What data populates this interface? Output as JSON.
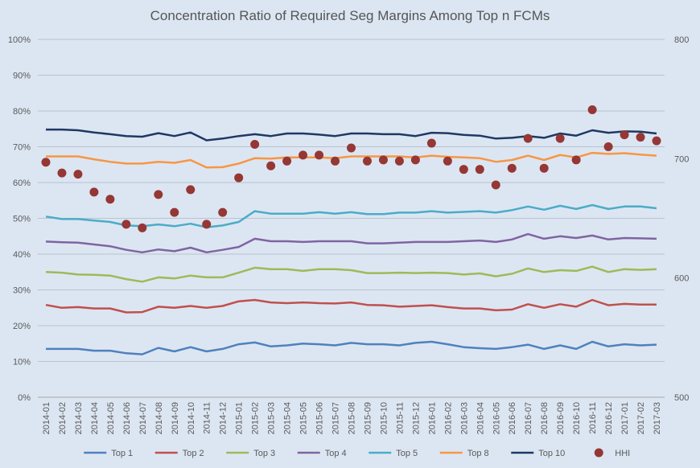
{
  "chart_data": {
    "type": "line",
    "title": "Concentration Ratio of Required Seg Margins Among Top n FCMs",
    "categories": [
      "2014-01",
      "2014-02",
      "2014-03",
      "2014-04",
      "2014-05",
      "2014-06",
      "2014-07",
      "2014-08",
      "2014-09",
      "2014-10",
      "2014-11",
      "2014-12",
      "2015-01",
      "2015-02",
      "2015-03",
      "2015-04",
      "2015-05",
      "2015-06",
      "2015-07",
      "2015-08",
      "2015-09",
      "2015-10",
      "2015-11",
      "2015-12",
      "2016-01",
      "2016-02",
      "2016-03",
      "2016-04",
      "2016-05",
      "2016-06",
      "2016-07",
      "2016-08",
      "2016-09",
      "2016-10",
      "2016-11",
      "2016-12",
      "2017-01",
      "2017-02",
      "2017-03"
    ],
    "y_left": {
      "range": [
        0,
        100
      ],
      "ticks": [
        "0%",
        "10%",
        "20%",
        "30%",
        "40%",
        "50%",
        "60%",
        "70%",
        "80%",
        "90%",
        "100%"
      ]
    },
    "y_right": {
      "range": [
        500,
        800
      ],
      "ticks": [
        "500",
        "600",
        "700",
        "800"
      ]
    },
    "grid": true,
    "legend_position": "bottom",
    "series": [
      {
        "name": "Top 1",
        "color": "#4f81bd",
        "axis": "left",
        "type": "line",
        "values": [
          13.5,
          13.5,
          13.5,
          13,
          13,
          12.3,
          12,
          13.8,
          12.8,
          14,
          12.8,
          13.5,
          14.8,
          15.3,
          14.2,
          14.5,
          15,
          14.8,
          14.5,
          15.2,
          14.8,
          14.8,
          14.5,
          15.2,
          15.5,
          14.8,
          14,
          13.7,
          13.5,
          14,
          14.7,
          13.5,
          14.5,
          13.5,
          15.5,
          14.2,
          14.8,
          14.5,
          14.7
        ]
      },
      {
        "name": "Top 2",
        "color": "#c0504d",
        "axis": "left",
        "type": "line",
        "values": [
          25.8,
          25,
          25.2,
          24.8,
          24.8,
          23.7,
          23.8,
          25.3,
          25,
          25.5,
          25,
          25.5,
          26.8,
          27.2,
          26.5,
          26.3,
          26.5,
          26.3,
          26.2,
          26.5,
          25.8,
          25.7,
          25.3,
          25.5,
          25.7,
          25.2,
          24.8,
          24.8,
          24.3,
          24.5,
          26,
          25,
          26,
          25.3,
          27.2,
          25.7,
          26.1,
          25.9,
          25.9
        ]
      },
      {
        "name": "Top 3",
        "color": "#9bbb59",
        "axis": "left",
        "type": "line",
        "values": [
          35,
          34.8,
          34.3,
          34.2,
          34,
          33,
          32.3,
          33.5,
          33.2,
          34,
          33.5,
          33.5,
          34.8,
          36.2,
          35.8,
          35.8,
          35.3,
          35.8,
          35.8,
          35.5,
          34.7,
          34.7,
          34.8,
          34.7,
          34.8,
          34.7,
          34.3,
          34.6,
          33.8,
          34.5,
          36,
          35,
          35.5,
          35.3,
          36.5,
          35,
          35.8,
          35.6,
          35.8
        ]
      },
      {
        "name": "Top 4",
        "color": "#8064a2",
        "axis": "left",
        "type": "line",
        "values": [
          43.5,
          43.3,
          43.2,
          42.7,
          42.2,
          41.2,
          40.5,
          41.3,
          40.8,
          41.8,
          40.5,
          41.2,
          42,
          44.3,
          43.6,
          43.6,
          43.4,
          43.6,
          43.6,
          43.6,
          43,
          43,
          43.2,
          43.4,
          43.4,
          43.4,
          43.6,
          43.8,
          43.4,
          44.1,
          45.6,
          44.3,
          45,
          44.5,
          45.2,
          44.1,
          44.5,
          44.4,
          44.3
        ]
      },
      {
        "name": "Top 5",
        "color": "#4bacc6",
        "axis": "left",
        "type": "line",
        "values": [
          50.5,
          49.8,
          49.8,
          49.4,
          49,
          48,
          47.8,
          48.3,
          47.8,
          48.5,
          47.5,
          48,
          49,
          52,
          51.3,
          51.3,
          51.3,
          51.7,
          51.3,
          51.7,
          51.2,
          51.2,
          51.6,
          51.6,
          52,
          51.6,
          51.8,
          52,
          51.6,
          52.3,
          53.3,
          52.4,
          53.5,
          52.6,
          53.7,
          52.6,
          53.3,
          53.3,
          52.8
        ]
      },
      {
        "name": "Top 8",
        "color": "#f79646",
        "axis": "left",
        "type": "line",
        "values": [
          67.3,
          67.3,
          67.3,
          66.5,
          65.8,
          65.3,
          65.3,
          65.8,
          65.5,
          66.3,
          64.2,
          64.3,
          65.3,
          66.8,
          66.7,
          67,
          67,
          67,
          66.8,
          67.3,
          67.3,
          67.3,
          67.3,
          67,
          67.5,
          67.2,
          67,
          66.8,
          65.8,
          66.3,
          67.5,
          66.3,
          67.7,
          67,
          68.3,
          68,
          68.2,
          67.8,
          67.5
        ]
      },
      {
        "name": "Top 10",
        "color": "#1f3864",
        "axis": "left",
        "type": "line",
        "values": [
          74.8,
          74.8,
          74.6,
          74,
          73.5,
          73,
          72.8,
          73.8,
          73,
          74,
          71.8,
          72.3,
          73,
          73.5,
          73,
          73.7,
          73.7,
          73.4,
          73,
          73.7,
          73.7,
          73.5,
          73.5,
          73,
          73.9,
          73.8,
          73.3,
          73.1,
          72.3,
          72.5,
          73,
          72.5,
          73.7,
          73.1,
          74.6,
          73.9,
          74.3,
          74.2,
          73.7
        ]
      },
      {
        "name": "HHI",
        "color": "#953735",
        "axis": "right",
        "type": "scatter",
        "values": [
          697,
          688,
          687,
          672,
          666,
          645,
          642,
          670,
          655,
          674,
          645,
          655,
          684,
          712,
          694,
          698,
          703,
          703,
          698,
          709,
          698,
          699,
          698,
          699,
          713,
          698,
          691,
          691,
          678,
          692,
          717,
          692,
          717,
          699,
          741,
          710,
          720,
          718,
          715
        ]
      }
    ]
  }
}
